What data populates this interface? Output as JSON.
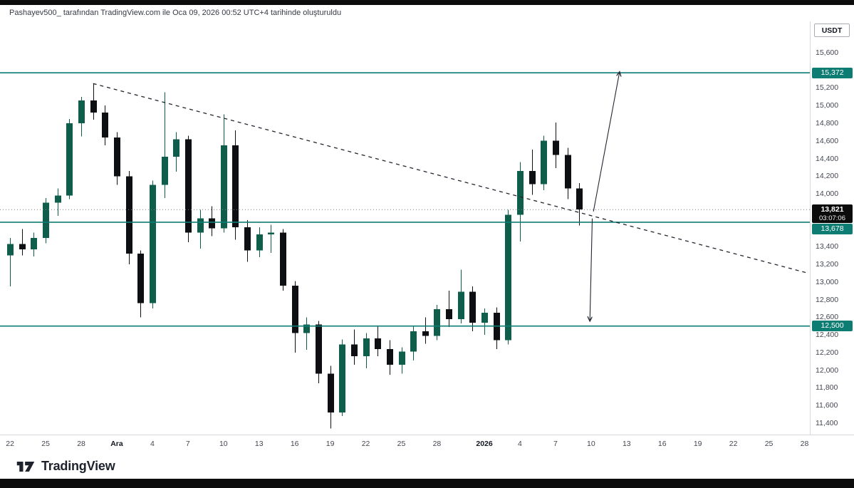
{
  "meta": {
    "attribution": "Pashayev500_ tarafından TradingView.com ile Oca 09, 2026 00:52 UTC+4 tarihinde oluşturuldu"
  },
  "price_scale": {
    "currency_label": "USDT"
  },
  "footer": {
    "brand": "TradingView"
  },
  "chart_data": {
    "type": "candlestick",
    "title": "",
    "ylabel": "USDT",
    "grid": false,
    "ylim": [
      11270,
      15955
    ],
    "xlim": [
      -0.85,
      67.45
    ],
    "candles": [
      [
        13300,
        13500,
        12950,
        13430
      ],
      [
        13430,
        13600,
        13300,
        13370
      ],
      [
        13370,
        13560,
        13290,
        13500
      ],
      [
        13500,
        13950,
        13440,
        13900
      ],
      [
        13900,
        14060,
        13750,
        13980
      ],
      [
        13980,
        14850,
        13940,
        14800
      ],
      [
        14800,
        15100,
        14650,
        15060
      ],
      [
        15060,
        15250,
        14840,
        14920
      ],
      [
        14920,
        15000,
        14550,
        14640
      ],
      [
        14640,
        14700,
        14100,
        14200
      ],
      [
        14200,
        14260,
        13200,
        13320
      ],
      [
        13320,
        13360,
        12600,
        12760
      ],
      [
        12760,
        14150,
        12700,
        14100
      ],
      [
        14100,
        15150,
        13950,
        14420
      ],
      [
        14420,
        14700,
        14250,
        14620
      ],
      [
        14620,
        14660,
        13450,
        13560
      ],
      [
        13560,
        13820,
        13380,
        13720
      ],
      [
        13720,
        13860,
        13520,
        13610
      ],
      [
        13610,
        14900,
        13560,
        14550
      ],
      [
        14550,
        14720,
        13480,
        13620
      ],
      [
        13620,
        13700,
        13230,
        13360
      ],
      [
        13360,
        13620,
        13280,
        13540
      ],
      [
        13540,
        13650,
        13330,
        13560
      ],
      [
        13560,
        13600,
        12900,
        12960
      ],
      [
        12960,
        13010,
        12200,
        12420
      ],
      [
        12420,
        12600,
        12230,
        12520
      ],
      [
        12520,
        12560,
        11850,
        11960
      ],
      [
        11960,
        12050,
        11340,
        11520
      ],
      [
        11520,
        12350,
        11480,
        12290
      ],
      [
        12290,
        12460,
        12060,
        12160
      ],
      [
        12160,
        12420,
        12020,
        12360
      ],
      [
        12360,
        12500,
        12160,
        12240
      ],
      [
        12240,
        12340,
        11950,
        12060
      ],
      [
        12060,
        12260,
        11960,
        12210
      ],
      [
        12210,
        12500,
        12110,
        12440
      ],
      [
        12440,
        12600,
        12300,
        12390
      ],
      [
        12390,
        12740,
        12340,
        12690
      ],
      [
        12690,
        12900,
        12490,
        12580
      ],
      [
        12580,
        13140,
        12530,
        12890
      ],
      [
        12890,
        12950,
        12440,
        12540
      ],
      [
        12540,
        12700,
        12400,
        12650
      ],
      [
        12650,
        12710,
        12240,
        12340
      ],
      [
        12340,
        13820,
        12290,
        13760
      ],
      [
        13760,
        14360,
        13460,
        14260
      ],
      [
        14260,
        14500,
        13990,
        14110
      ],
      [
        14110,
        14660,
        14040,
        14600
      ],
      [
        14600,
        14810,
        14290,
        14440
      ],
      [
        14440,
        14520,
        13940,
        14060
      ],
      [
        14060,
        14120,
        13640,
        13821
      ]
    ],
    "levels": [
      {
        "price": 15372,
        "label": "15,372"
      },
      {
        "price": 13678,
        "label": "13,678"
      },
      {
        "price": 12500,
        "label": "12,500"
      }
    ],
    "last_price": {
      "price": 13821,
      "label": "13,821",
      "countdown": "03:07:06"
    },
    "trendline": {
      "t1": 7,
      "price1": 15250,
      "t2": 67.3,
      "price2": 13100,
      "style": "dashed"
    },
    "arrows": [
      {
        "name": "up",
        "t1": 49.2,
        "price1": 13800,
        "t2": 51.4,
        "price2": 15380
      },
      {
        "name": "down",
        "t1": 49.1,
        "price1": 13720,
        "t2": 48.9,
        "price2": 12560
      }
    ],
    "y_ticks": [
      {
        "label": "15,600",
        "price": 15600
      },
      {
        "label": "15,200",
        "price": 15200
      },
      {
        "label": "15,000",
        "price": 15000
      },
      {
        "label": "14,800",
        "price": 14800
      },
      {
        "label": "14,600",
        "price": 14600
      },
      {
        "label": "14,400",
        "price": 14400
      },
      {
        "label": "14,200",
        "price": 14200
      },
      {
        "label": "14,000",
        "price": 14000
      },
      {
        "label": "13,400",
        "price": 13400
      },
      {
        "label": "13,200",
        "price": 13200
      },
      {
        "label": "13,000",
        "price": 13000
      },
      {
        "label": "12,800",
        "price": 12800
      },
      {
        "label": "12,600",
        "price": 12600
      },
      {
        "label": "12,400",
        "price": 12400
      },
      {
        "label": "12,200",
        "price": 12200
      },
      {
        "label": "12,000",
        "price": 12000
      },
      {
        "label": "11,800",
        "price": 11800
      },
      {
        "label": "11,600",
        "price": 11600
      },
      {
        "label": "11,400",
        "price": 11400
      }
    ],
    "x_ticks": [
      {
        "label": "22",
        "t": 0
      },
      {
        "label": "25",
        "t": 3
      },
      {
        "label": "28",
        "t": 6
      },
      {
        "label": "Ara",
        "t": 9,
        "major": true
      },
      {
        "label": "4",
        "t": 12
      },
      {
        "label": "7",
        "t": 15
      },
      {
        "label": "10",
        "t": 18
      },
      {
        "label": "13",
        "t": 21
      },
      {
        "label": "16",
        "t": 24
      },
      {
        "label": "19",
        "t": 27
      },
      {
        "label": "22",
        "t": 30
      },
      {
        "label": "25",
        "t": 33
      },
      {
        "label": "28",
        "t": 36
      },
      {
        "label": "2026",
        "t": 40,
        "major": true
      },
      {
        "label": "4",
        "t": 43
      },
      {
        "label": "7",
        "t": 46
      },
      {
        "label": "10",
        "t": 49
      },
      {
        "label": "13",
        "t": 52
      },
      {
        "label": "16",
        "t": 55
      },
      {
        "label": "19",
        "t": 58
      },
      {
        "label": "22",
        "t": 61
      },
      {
        "label": "25",
        "t": 64
      },
      {
        "label": "28",
        "t": 67
      }
    ],
    "colors": {
      "up": "#0f5e4b",
      "down": "#0e0f12",
      "level": "#0d7d74",
      "trend": "#22262f",
      "last_badge": "#0b0b0b",
      "price_line": "#7a7e87"
    }
  }
}
